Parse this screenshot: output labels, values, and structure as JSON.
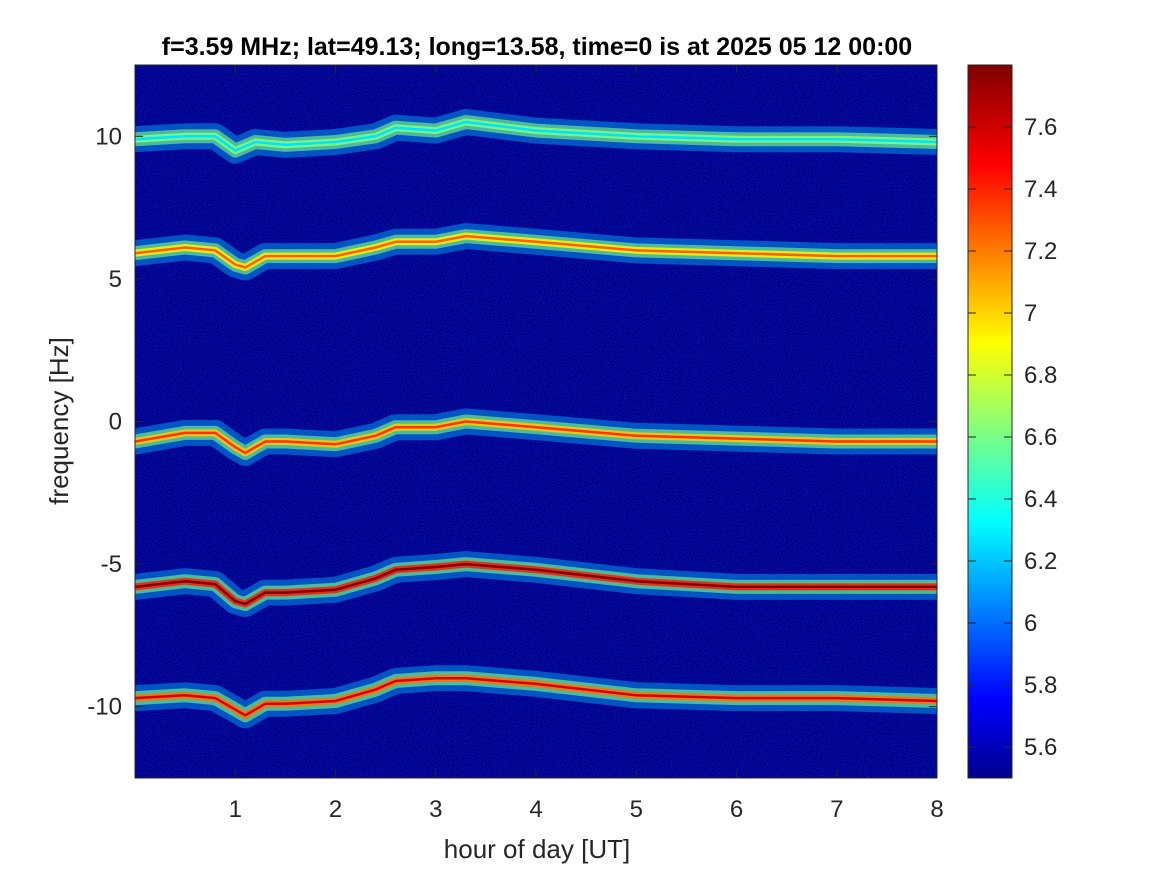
{
  "chart_data": {
    "type": "heatmap",
    "title": "f=3.59 MHz;  lat=49.13; long=13.58, time=0 is at 2025 05 12 00:00",
    "xlabel": "hour of day [UT]",
    "ylabel": "frequency [Hz]",
    "xlim": [
      0,
      8
    ],
    "ylim": [
      -12.5,
      12.5
    ],
    "x_ticks": [
      1,
      2,
      3,
      4,
      5,
      6,
      7,
      8
    ],
    "x_tick_labels": [
      "1",
      "2",
      "3",
      "4",
      "5",
      "6",
      "7",
      "8"
    ],
    "y_ticks": [
      10,
      5,
      0,
      -5,
      -10
    ],
    "y_tick_labels": [
      "10",
      "5",
      "0",
      "-5",
      "-10"
    ],
    "colormap": "jet",
    "color_limits": [
      5.5,
      7.8
    ],
    "colorbar_ticks": [
      7.6,
      7.4,
      7.2,
      7,
      6.8,
      6.6,
      6.4,
      6.2,
      6,
      5.8,
      5.6
    ],
    "colorbar_tick_labels": [
      "7.6",
      "7.4",
      "7.2",
      "7",
      "6.8",
      "6.6",
      "6.4",
      "6.2",
      "6",
      "5.8",
      "5.6"
    ],
    "background_level": 5.55,
    "traces": [
      {
        "name": "",
        "offset": 9.8,
        "peak": 6.3,
        "x": [
          0,
          0.5,
          0.8,
          1.0,
          1.2,
          1.5,
          2.0,
          2.4,
          2.6,
          3.0,
          3.3,
          4.0,
          5.0,
          6.0,
          7.0,
          8.0
        ],
        "y": [
          9.9,
          10.0,
          10.0,
          9.5,
          9.8,
          9.7,
          9.8,
          10.0,
          10.3,
          10.2,
          10.5,
          10.2,
          10.0,
          9.9,
          9.9,
          9.8
        ]
      },
      {
        "name": "",
        "offset": 5.9,
        "peak": 7.3,
        "x": [
          0,
          0.5,
          0.8,
          1.0,
          1.1,
          1.3,
          1.5,
          2.0,
          2.4,
          2.6,
          3.0,
          3.3,
          4.0,
          5.0,
          6.0,
          7.0,
          8.0
        ],
        "y": [
          5.9,
          6.1,
          6.0,
          5.5,
          5.4,
          5.8,
          5.8,
          5.8,
          6.1,
          6.3,
          6.3,
          6.5,
          6.3,
          6.0,
          5.9,
          5.8,
          5.8
        ]
      },
      {
        "name": "",
        "offset": -0.6,
        "peak": 7.4,
        "x": [
          0,
          0.5,
          0.8,
          1.0,
          1.1,
          1.3,
          1.5,
          2.0,
          2.4,
          2.6,
          3.0,
          3.3,
          4.0,
          5.0,
          6.0,
          7.0,
          8.0
        ],
        "y": [
          -0.7,
          -0.4,
          -0.4,
          -0.9,
          -1.1,
          -0.7,
          -0.7,
          -0.8,
          -0.5,
          -0.2,
          -0.2,
          0.0,
          -0.2,
          -0.5,
          -0.6,
          -0.7,
          -0.7
        ]
      },
      {
        "name": "",
        "offset": -5.8,
        "peak": 7.8,
        "x": [
          0,
          0.5,
          0.8,
          1.0,
          1.1,
          1.3,
          1.5,
          2.0,
          2.4,
          2.6,
          3.0,
          3.3,
          4.0,
          5.0,
          6.0,
          7.0,
          8.0
        ],
        "y": [
          -5.8,
          -5.6,
          -5.7,
          -6.3,
          -6.4,
          -6.0,
          -6.0,
          -5.9,
          -5.5,
          -5.2,
          -5.1,
          -5.0,
          -5.2,
          -5.6,
          -5.8,
          -5.8,
          -5.8
        ]
      },
      {
        "name": "",
        "offset": -9.7,
        "peak": 7.6,
        "x": [
          0,
          0.5,
          0.8,
          1.0,
          1.1,
          1.3,
          1.5,
          2.0,
          2.4,
          2.6,
          3.0,
          3.3,
          4.0,
          5.0,
          6.0,
          7.0,
          8.0
        ],
        "y": [
          -9.7,
          -9.6,
          -9.7,
          -10.1,
          -10.3,
          -9.9,
          -9.9,
          -9.8,
          -9.4,
          -9.1,
          -9.0,
          -9.0,
          -9.2,
          -9.6,
          -9.7,
          -9.7,
          -9.8
        ]
      }
    ]
  }
}
